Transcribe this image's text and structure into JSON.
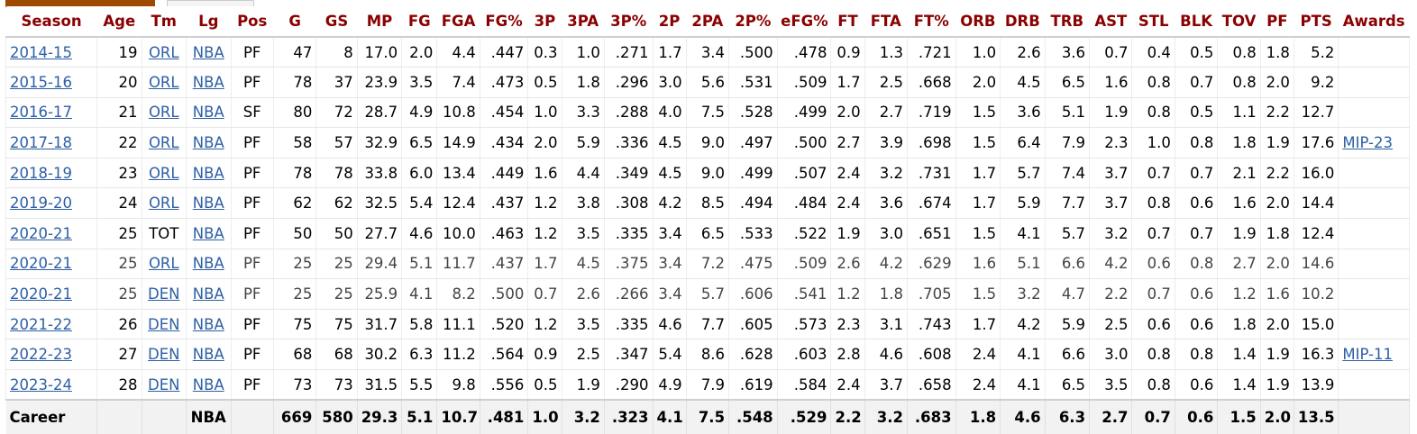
{
  "headers": [
    "Season",
    "Age",
    "Tm",
    "Lg",
    "Pos",
    "G",
    "GS",
    "MP",
    "FG",
    "FGA",
    "FG%",
    "3P",
    "3PA",
    "3P%",
    "2P",
    "2PA",
    "2P%",
    "eFG%",
    "FT",
    "FTA",
    "FT%",
    "ORB",
    "DRB",
    "TRB",
    "AST",
    "STL",
    "BLK",
    "TOV",
    "PF",
    "PTS",
    "Awards"
  ],
  "rows": [
    {
      "partial": false,
      "link_team": true,
      "cells": [
        "2014-15",
        "19",
        "ORL",
        "NBA",
        "PF",
        "47",
        "8",
        "17.0",
        "2.0",
        "4.4",
        ".447",
        "0.3",
        "1.0",
        ".271",
        "1.7",
        "3.4",
        ".500",
        ".478",
        "0.9",
        "1.3",
        ".721",
        "1.0",
        "2.6",
        "3.6",
        "0.7",
        "0.4",
        "0.5",
        "0.8",
        "1.8",
        "5.2",
        ""
      ]
    },
    {
      "partial": false,
      "link_team": true,
      "cells": [
        "2015-16",
        "20",
        "ORL",
        "NBA",
        "PF",
        "78",
        "37",
        "23.9",
        "3.5",
        "7.4",
        ".473",
        "0.5",
        "1.8",
        ".296",
        "3.0",
        "5.6",
        ".531",
        ".509",
        "1.7",
        "2.5",
        ".668",
        "2.0",
        "4.5",
        "6.5",
        "1.6",
        "0.8",
        "0.7",
        "0.8",
        "2.0",
        "9.2",
        ""
      ]
    },
    {
      "partial": false,
      "link_team": true,
      "cells": [
        "2016-17",
        "21",
        "ORL",
        "NBA",
        "SF",
        "80",
        "72",
        "28.7",
        "4.9",
        "10.8",
        ".454",
        "1.0",
        "3.3",
        ".288",
        "4.0",
        "7.5",
        ".528",
        ".499",
        "2.0",
        "2.7",
        ".719",
        "1.5",
        "3.6",
        "5.1",
        "1.9",
        "0.8",
        "0.5",
        "1.1",
        "2.2",
        "12.7",
        ""
      ]
    },
    {
      "partial": false,
      "link_team": true,
      "cells": [
        "2017-18",
        "22",
        "ORL",
        "NBA",
        "PF",
        "58",
        "57",
        "32.9",
        "6.5",
        "14.9",
        ".434",
        "2.0",
        "5.9",
        ".336",
        "4.5",
        "9.0",
        ".497",
        ".500",
        "2.7",
        "3.9",
        ".698",
        "1.5",
        "6.4",
        "7.9",
        "2.3",
        "1.0",
        "0.8",
        "1.8",
        "1.9",
        "17.6",
        "MIP-23"
      ]
    },
    {
      "partial": false,
      "link_team": true,
      "cells": [
        "2018-19",
        "23",
        "ORL",
        "NBA",
        "PF",
        "78",
        "78",
        "33.8",
        "6.0",
        "13.4",
        ".449",
        "1.6",
        "4.4",
        ".349",
        "4.5",
        "9.0",
        ".499",
        ".507",
        "2.4",
        "3.2",
        ".731",
        "1.7",
        "5.7",
        "7.4",
        "3.7",
        "0.7",
        "0.7",
        "2.1",
        "2.2",
        "16.0",
        ""
      ]
    },
    {
      "partial": false,
      "link_team": true,
      "cells": [
        "2019-20",
        "24",
        "ORL",
        "NBA",
        "PF",
        "62",
        "62",
        "32.5",
        "5.4",
        "12.4",
        ".437",
        "1.2",
        "3.8",
        ".308",
        "4.2",
        "8.5",
        ".494",
        ".484",
        "2.4",
        "3.6",
        ".674",
        "1.7",
        "5.9",
        "7.7",
        "3.7",
        "0.8",
        "0.6",
        "1.6",
        "2.0",
        "14.4",
        ""
      ]
    },
    {
      "partial": false,
      "link_team": false,
      "cells": [
        "2020-21",
        "25",
        "TOT",
        "NBA",
        "PF",
        "50",
        "50",
        "27.7",
        "4.6",
        "10.0",
        ".463",
        "1.2",
        "3.5",
        ".335",
        "3.4",
        "6.5",
        ".533",
        ".522",
        "1.9",
        "3.0",
        ".651",
        "1.5",
        "4.1",
        "5.7",
        "3.2",
        "0.7",
        "0.7",
        "1.9",
        "1.8",
        "12.4",
        ""
      ]
    },
    {
      "partial": true,
      "link_team": true,
      "cells": [
        "2020-21",
        "25",
        "ORL",
        "NBA",
        "PF",
        "25",
        "25",
        "29.4",
        "5.1",
        "11.7",
        ".437",
        "1.7",
        "4.5",
        ".375",
        "3.4",
        "7.2",
        ".475",
        ".509",
        "2.6",
        "4.2",
        ".629",
        "1.6",
        "5.1",
        "6.6",
        "4.2",
        "0.6",
        "0.8",
        "2.7",
        "2.0",
        "14.6",
        ""
      ]
    },
    {
      "partial": true,
      "link_team": true,
      "cells": [
        "2020-21",
        "25",
        "DEN",
        "NBA",
        "PF",
        "25",
        "25",
        "25.9",
        "4.1",
        "8.2",
        ".500",
        "0.7",
        "2.6",
        ".266",
        "3.4",
        "5.7",
        ".606",
        ".541",
        "1.2",
        "1.8",
        ".705",
        "1.5",
        "3.2",
        "4.7",
        "2.2",
        "0.7",
        "0.6",
        "1.2",
        "1.6",
        "10.2",
        ""
      ]
    },
    {
      "partial": false,
      "link_team": true,
      "cells": [
        "2021-22",
        "26",
        "DEN",
        "NBA",
        "PF",
        "75",
        "75",
        "31.7",
        "5.8",
        "11.1",
        ".520",
        "1.2",
        "3.5",
        ".335",
        "4.6",
        "7.7",
        ".605",
        ".573",
        "2.3",
        "3.1",
        ".743",
        "1.7",
        "4.2",
        "5.9",
        "2.5",
        "0.6",
        "0.6",
        "1.8",
        "2.0",
        "15.0",
        ""
      ]
    },
    {
      "partial": false,
      "link_team": true,
      "cells": [
        "2022-23",
        "27",
        "DEN",
        "NBA",
        "PF",
        "68",
        "68",
        "30.2",
        "6.3",
        "11.2",
        ".564",
        "0.9",
        "2.5",
        ".347",
        "5.4",
        "8.6",
        ".628",
        ".603",
        "2.8",
        "4.6",
        ".608",
        "2.4",
        "4.1",
        "6.6",
        "3.0",
        "0.8",
        "0.8",
        "1.4",
        "1.9",
        "16.3",
        "MIP-11"
      ]
    },
    {
      "partial": false,
      "link_team": true,
      "cells": [
        "2023-24",
        "28",
        "DEN",
        "NBA",
        "PF",
        "73",
        "73",
        "31.5",
        "5.5",
        "9.8",
        ".556",
        "0.5",
        "1.9",
        ".290",
        "4.9",
        "7.9",
        ".619",
        ".584",
        "2.4",
        "3.7",
        ".658",
        "2.4",
        "4.1",
        "6.5",
        "3.5",
        "0.8",
        "0.6",
        "1.4",
        "1.9",
        "13.9",
        ""
      ]
    }
  ],
  "career": [
    "Career",
    "",
    "",
    "NBA",
    "",
    "669",
    "580",
    "29.3",
    "5.1",
    "10.7",
    ".481",
    "1.0",
    "3.2",
    ".323",
    "4.1",
    "7.5",
    ".548",
    ".529",
    "2.2",
    "3.2",
    ".683",
    "1.8",
    "4.6",
    "6.3",
    "2.7",
    "0.7",
    "0.6",
    "1.5",
    "2.0",
    "13.5",
    ""
  ]
}
